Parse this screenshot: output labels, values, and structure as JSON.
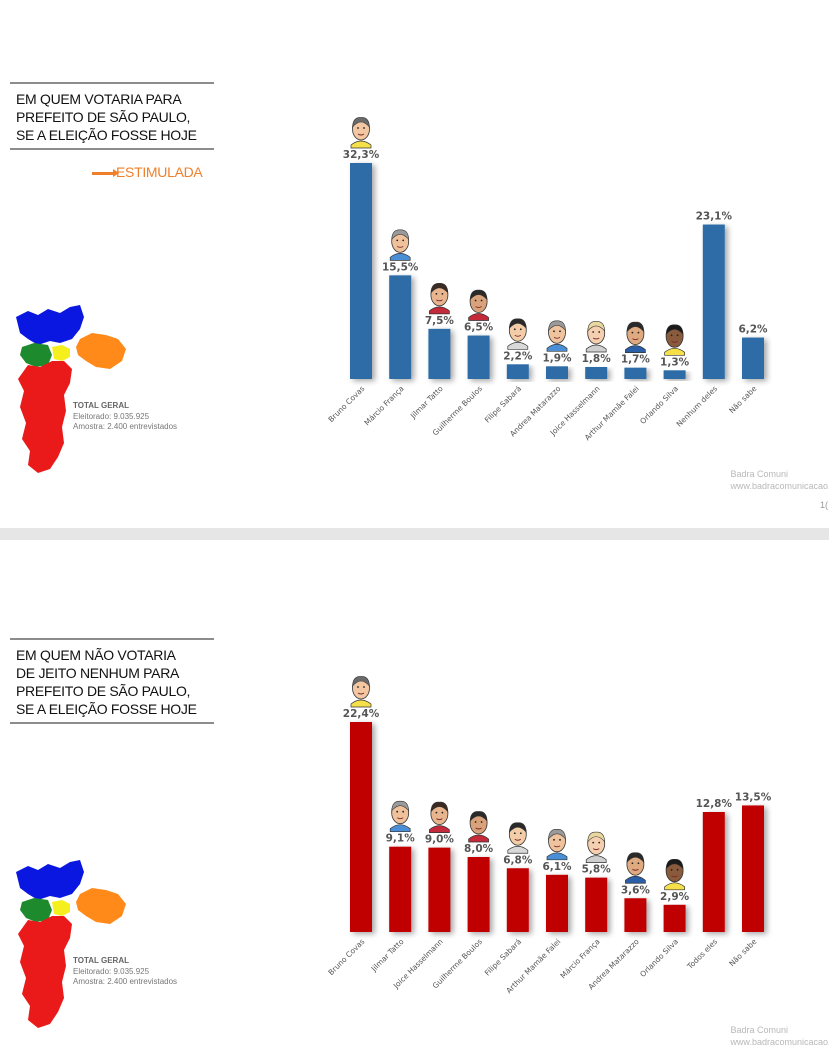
{
  "slides": [
    {
      "title_lines": [
        "EM QUEM VOTARIA PARA",
        "PREFEITO DE SÃO PAULO,",
        "SE A ELEIÇÃO FOSSE HOJE"
      ],
      "subtitle": "ESTIMULADA",
      "stats": {
        "title": "TOTAL GERAL",
        "eleitorado": "Eleitorado: 9.035.925",
        "amostra": "Amostra: 2.400 entrevistados"
      },
      "watermark": {
        "line1": "Badra Comuni",
        "line2": "www.badracomunicacao.c"
      },
      "page_number": "1("
    },
    {
      "title_lines": [
        "EM QUEM NÃO VOTARIA",
        "DE JEITO NENHUM PARA",
        "PREFEITO DE SÃO PAULO,",
        "SE A ELEIÇÃO FOSSE HOJE"
      ],
      "stats": {
        "title": "TOTAL GERAL",
        "eleitorado": "Eleitorado: 9.035.925",
        "amostra": "Amostra: 2.400 entrevistados"
      },
      "watermark": {
        "line1": "Badra Comuni",
        "line2": "www.badracomunicacao.c"
      }
    }
  ],
  "colors": {
    "bar_blue": "#2e6ca7",
    "bar_red": "#c00000",
    "accent_orange": "#f07f2a",
    "map_blue": "#0a17e0",
    "map_orange": "#ff8a1a",
    "map_green": "#1d8b2d",
    "map_yellow": "#f5ef1d",
    "map_red": "#ea1a1a"
  },
  "chart_data": [
    {
      "type": "bar",
      "categories": [
        "Bruno Covas",
        "Márcio França",
        "Jilmar Tatto",
        "Guilherme Boulos",
        "Filipe Sabará",
        "Andrea Matarazzo",
        "Joice Hasselmann",
        "Arthur Mamãe Falei",
        "Orlando Silva",
        "Nenhum deles",
        "Não sabe"
      ],
      "values": [
        32.3,
        15.5,
        7.5,
        6.5,
        2.2,
        1.9,
        1.8,
        1.7,
        1.3,
        23.1,
        6.2
      ],
      "labels": [
        "32,3%",
        "15,5%",
        "7,5%",
        "6,5%",
        "2,2%",
        "1,9%",
        "1,8%",
        "1,7%",
        "1,3%",
        "23,1%",
        "6,2%"
      ],
      "avatars": [
        true,
        true,
        true,
        true,
        true,
        true,
        true,
        true,
        true,
        false,
        false
      ],
      "color": "#2e6ca7"
    },
    {
      "type": "bar",
      "categories": [
        "Bruno Covas",
        "Jilmar Tatto",
        "Joice Hasselmann",
        "Guilherme Boulos",
        "Filipe Sabará",
        "Arthur Mamãe Falei",
        "Márcio França",
        "Andrea Matarazzo",
        "Orlando Silva",
        "Todos eles",
        "Não sabe"
      ],
      "values": [
        22.4,
        9.1,
        9.0,
        8.0,
        6.8,
        6.1,
        5.8,
        3.6,
        2.9,
        12.8,
        13.5
      ],
      "labels": [
        "22,4%",
        "9,1%",
        "9,0%",
        "8,0%",
        "6,8%",
        "6,1%",
        "5,8%",
        "3,6%",
        "2,9%",
        "12,8%",
        "13,5%"
      ],
      "avatars": [
        true,
        true,
        true,
        true,
        true,
        true,
        true,
        true,
        true,
        false,
        false
      ],
      "color": "#c00000"
    }
  ]
}
